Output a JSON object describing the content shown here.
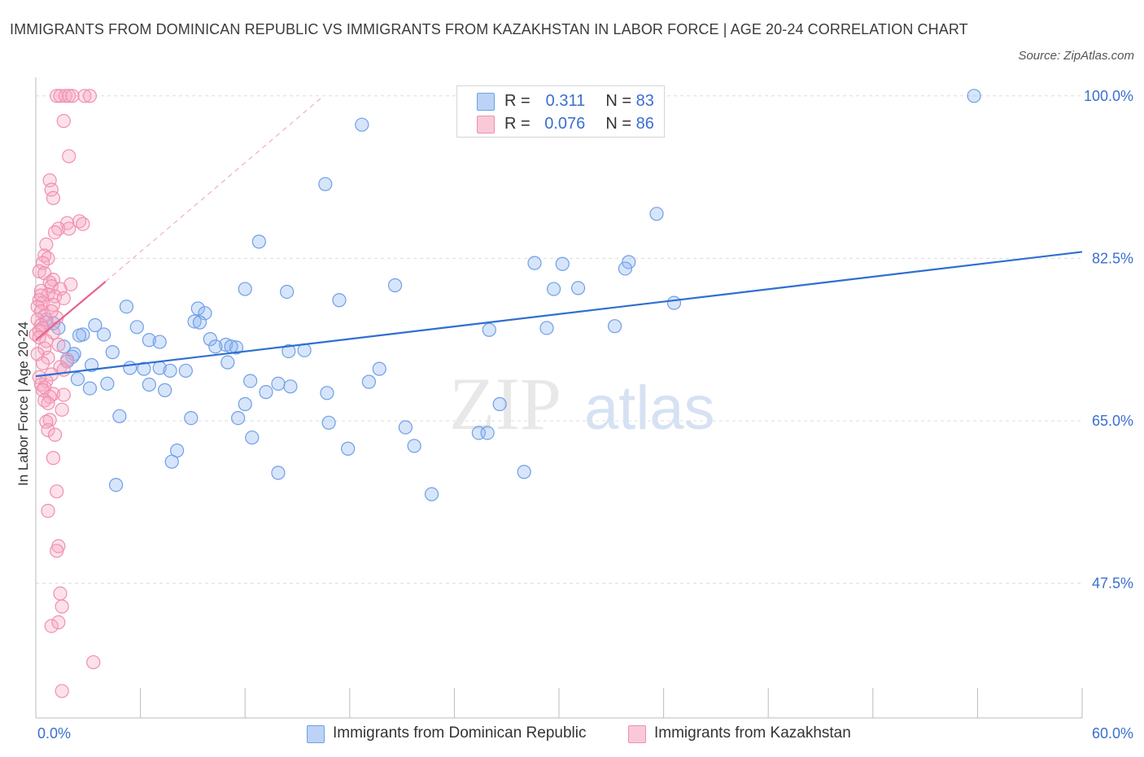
{
  "header": {
    "title": "IMMIGRANTS FROM DOMINICAN REPUBLIC VS IMMIGRANTS FROM KAZAKHSTAN IN LABOR FORCE | AGE 20-24 CORRELATION CHART",
    "source": "Source: ZipAtlas.com"
  },
  "watermark": {
    "zip": "ZIP",
    "atlas": "atlas"
  },
  "legend": {
    "r_label": "R =",
    "n_label": "N =",
    "rows": [
      {
        "r": "0.311",
        "n": "83",
        "color": "#6f9fe6"
      },
      {
        "r": "0.076",
        "n": "86",
        "color": "#f08fae"
      }
    ]
  },
  "chart_data": {
    "type": "scatter",
    "xlabel": "",
    "ylabel": "In Labor Force | Age 20-24",
    "xlim": [
      0,
      60
    ],
    "ylim": [
      33,
      102
    ],
    "x_tick_labels": [
      "0.0%",
      "60.0%"
    ],
    "y_ticks": [
      47.5,
      65.0,
      82.5,
      100.0
    ],
    "y_tick_labels": [
      "47.5%",
      "65.0%",
      "82.5%",
      "100.0%"
    ],
    "grid": true,
    "legend_position": "top-center",
    "series": [
      {
        "name": "Immigrants from Dominican Republic",
        "color": "#6f9fe6",
        "fill": "rgba(140,180,240,0.35)",
        "trend": {
          "x0": 0,
          "y0": 69.8,
          "x1": 60,
          "y1": 83.2
        },
        "points": [
          [
            53.8,
            100
          ],
          [
            18.7,
            96.9
          ],
          [
            16.6,
            90.5
          ],
          [
            35.6,
            87.3
          ],
          [
            12.8,
            84.3
          ],
          [
            28.6,
            82.0
          ],
          [
            30.2,
            81.9
          ],
          [
            34.0,
            82.1
          ],
          [
            33.8,
            81.4
          ],
          [
            20.6,
            79.6
          ],
          [
            12.0,
            79.2
          ],
          [
            14.4,
            78.9
          ],
          [
            17.4,
            78.0
          ],
          [
            31.1,
            79.3
          ],
          [
            29.7,
            79.2
          ],
          [
            36.6,
            77.7
          ],
          [
            5.2,
            77.3
          ],
          [
            9.3,
            77.1
          ],
          [
            9.7,
            76.6
          ],
          [
            9.1,
            75.7
          ],
          [
            9.4,
            75.6
          ],
          [
            3.4,
            75.3
          ],
          [
            5.8,
            75.1
          ],
          [
            26.0,
            74.8
          ],
          [
            29.3,
            75.0
          ],
          [
            33.2,
            75.2
          ],
          [
            1.0,
            75.5
          ],
          [
            0.6,
            75.9
          ],
          [
            1.3,
            75.0
          ],
          [
            2.7,
            74.3
          ],
          [
            3.9,
            74.3
          ],
          [
            2.5,
            74.2
          ],
          [
            6.5,
            73.7
          ],
          [
            7.1,
            73.5
          ],
          [
            10.0,
            73.8
          ],
          [
            10.9,
            73.2
          ],
          [
            10.3,
            73.0
          ],
          [
            11.5,
            72.9
          ],
          [
            15.4,
            72.6
          ],
          [
            4.4,
            72.4
          ],
          [
            14.5,
            72.5
          ],
          [
            1.6,
            73.0
          ],
          [
            2.2,
            72.2
          ],
          [
            2.1,
            71.9
          ],
          [
            1.8,
            71.4
          ],
          [
            3.2,
            71.0
          ],
          [
            11.0,
            71.3
          ],
          [
            7.1,
            70.7
          ],
          [
            5.4,
            70.7
          ],
          [
            6.2,
            70.6
          ],
          [
            7.7,
            70.4
          ],
          [
            8.6,
            70.4
          ],
          [
            19.7,
            70.6
          ],
          [
            19.1,
            69.2
          ],
          [
            2.4,
            69.5
          ],
          [
            4.1,
            69.0
          ],
          [
            6.5,
            68.9
          ],
          [
            12.3,
            69.3
          ],
          [
            14.6,
            68.7
          ],
          [
            13.9,
            69.0
          ],
          [
            3.1,
            68.5
          ],
          [
            7.4,
            68.3
          ],
          [
            13.2,
            68.1
          ],
          [
            16.7,
            68.0
          ],
          [
            12.0,
            66.8
          ],
          [
            26.6,
            66.8
          ],
          [
            4.8,
            65.5
          ],
          [
            8.9,
            65.3
          ],
          [
            11.6,
            65.3
          ],
          [
            16.8,
            64.8
          ],
          [
            21.2,
            64.3
          ],
          [
            12.4,
            63.2
          ],
          [
            25.4,
            63.7
          ],
          [
            25.9,
            63.7
          ],
          [
            21.7,
            62.3
          ],
          [
            8.1,
            61.8
          ],
          [
            17.9,
            62.0
          ],
          [
            7.8,
            60.6
          ],
          [
            13.9,
            59.4
          ],
          [
            28.0,
            59.5
          ],
          [
            4.6,
            58.1
          ],
          [
            22.7,
            57.1
          ],
          [
            11.2,
            73.0
          ]
        ]
      },
      {
        "name": "Immigrants from Kazakhstan",
        "color": "#f08fae",
        "fill": "rgba(245,170,195,0.35)",
        "trend": {
          "x0": 0,
          "y0": 73.7,
          "x1": 4.0,
          "y1": 80.0,
          "dashed_to_x": 16.5,
          "dashed_to_y": 100
        },
        "points": [
          [
            1.2,
            100
          ],
          [
            1.4,
            100
          ],
          [
            1.7,
            100
          ],
          [
            1.9,
            100
          ],
          [
            2.1,
            100
          ],
          [
            2.8,
            100
          ],
          [
            3.1,
            100
          ],
          [
            1.6,
            97.3
          ],
          [
            1.9,
            93.5
          ],
          [
            0.8,
            90.9
          ],
          [
            0.9,
            89.9
          ],
          [
            1.0,
            89.0
          ],
          [
            2.5,
            86.5
          ],
          [
            1.8,
            86.3
          ],
          [
            2.7,
            86.2
          ],
          [
            1.3,
            85.7
          ],
          [
            1.1,
            85.3
          ],
          [
            0.6,
            84.0
          ],
          [
            1.9,
            85.7
          ],
          [
            0.5,
            82.8
          ],
          [
            0.7,
            82.5
          ],
          [
            0.4,
            82.0
          ],
          [
            0.2,
            81.1
          ],
          [
            0.5,
            80.9
          ],
          [
            1.0,
            80.2
          ],
          [
            0.8,
            79.9
          ],
          [
            2.0,
            79.7
          ],
          [
            0.9,
            79.5
          ],
          [
            1.4,
            79.2
          ],
          [
            0.3,
            79.0
          ],
          [
            0.7,
            78.6
          ],
          [
            1.1,
            78.4
          ],
          [
            1.6,
            78.2
          ],
          [
            0.2,
            78.0
          ],
          [
            0.4,
            77.7
          ],
          [
            1.0,
            77.5
          ],
          [
            0.1,
            77.3
          ],
          [
            0.3,
            76.8
          ],
          [
            0.5,
            76.3
          ],
          [
            1.2,
            76.1
          ],
          [
            0.1,
            75.9
          ],
          [
            0.6,
            75.6
          ],
          [
            0.3,
            75.3
          ],
          [
            0.4,
            75.0
          ],
          [
            0.2,
            74.7
          ],
          [
            1.0,
            74.5
          ],
          [
            0.0,
            74.3
          ],
          [
            0.2,
            74.0
          ],
          [
            0.6,
            73.6
          ],
          [
            1.3,
            73.2
          ],
          [
            0.5,
            72.8
          ],
          [
            0.1,
            72.2
          ],
          [
            0.7,
            71.8
          ],
          [
            1.8,
            71.6
          ],
          [
            0.4,
            71.2
          ],
          [
            1.4,
            70.8
          ],
          [
            1.6,
            70.5
          ],
          [
            0.9,
            70.0
          ],
          [
            0.2,
            69.7
          ],
          [
            0.6,
            69.3
          ],
          [
            0.3,
            68.9
          ],
          [
            0.5,
            68.6
          ],
          [
            0.4,
            68.3
          ],
          [
            1.0,
            67.9
          ],
          [
            0.8,
            67.6
          ],
          [
            1.6,
            67.8
          ],
          [
            0.5,
            67.2
          ],
          [
            0.7,
            66.9
          ],
          [
            1.5,
            66.2
          ],
          [
            0.8,
            65.1
          ],
          [
            0.6,
            64.9
          ],
          [
            0.7,
            64.0
          ],
          [
            1.1,
            63.5
          ],
          [
            1.0,
            61.0
          ],
          [
            1.2,
            57.4
          ],
          [
            0.7,
            55.3
          ],
          [
            1.3,
            51.5
          ],
          [
            1.2,
            51.0
          ],
          [
            1.4,
            46.4
          ],
          [
            1.5,
            45.0
          ],
          [
            0.9,
            42.9
          ],
          [
            1.3,
            43.3
          ],
          [
            3.3,
            39.0
          ],
          [
            1.5,
            35.9
          ],
          [
            0.3,
            78.5
          ],
          [
            0.9,
            76.8
          ]
        ]
      }
    ]
  }
}
